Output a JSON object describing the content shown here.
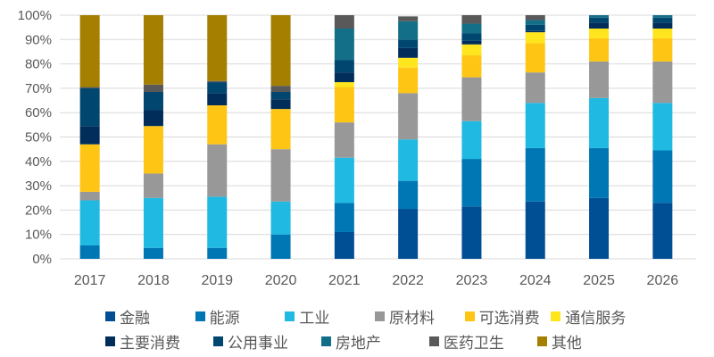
{
  "chart_data": {
    "type": "bar",
    "stacked": true,
    "title": "",
    "xlabel": "",
    "ylabel": "",
    "ylim": [
      0,
      100
    ],
    "yticks": [
      "0%",
      "10%",
      "20%",
      "30%",
      "40%",
      "50%",
      "60%",
      "70%",
      "80%",
      "90%",
      "100%"
    ],
    "grid": true,
    "legend_position": "bottom",
    "categories": [
      "2017",
      "2018",
      "2019",
      "2020",
      "2021",
      "2022",
      "2023",
      "2024",
      "2025",
      "2026"
    ],
    "series": [
      {
        "name": "金融",
        "color": "#004f94",
        "values": [
          0,
          0,
          0,
          0,
          11,
          20.5,
          21.5,
          23.5,
          25,
          23
        ]
      },
      {
        "name": "能源",
        "color": "#0077b5",
        "values": [
          5.5,
          4.5,
          4.5,
          10,
          12,
          11.5,
          19.5,
          22,
          20.5,
          21.5
        ]
      },
      {
        "name": "工业",
        "color": "#1fb9e1",
        "values": [
          18.5,
          20.5,
          21,
          13.5,
          18.5,
          17,
          15.5,
          18.5,
          20.5,
          19.5
        ]
      },
      {
        "name": "原材料",
        "color": "#989898",
        "values": [
          3.5,
          10,
          21.5,
          21.5,
          14.5,
          19,
          18,
          12.5,
          15,
          17
        ]
      },
      {
        "name": "可选消费",
        "color": "#fec514",
        "values": [
          19.5,
          19.5,
          16,
          16.5,
          14.5,
          10.5,
          9,
          12,
          9.5,
          9.5
        ]
      },
      {
        "name": "通信服务",
        "color": "#ffe51d",
        "values": [
          0,
          0,
          0,
          0,
          2,
          4,
          4.5,
          4.5,
          4,
          4
        ]
      },
      {
        "name": "主要消费",
        "color": "#002d5a",
        "values": [
          7.5,
          6.5,
          5,
          4,
          4,
          4,
          1.5,
          0.5,
          2.5,
          2.5
        ]
      },
      {
        "name": "公用事业",
        "color": "#00466e",
        "values": [
          15.5,
          7.5,
          4.5,
          3,
          5,
          3.5,
          3,
          2.5,
          2,
          2
        ]
      },
      {
        "name": "房地产",
        "color": "#136f88",
        "values": [
          0,
          0,
          0,
          0,
          13,
          7.5,
          4,
          2,
          1,
          1
        ]
      },
      {
        "name": "医药卫生",
        "color": "#595959",
        "values": [
          0.5,
          3,
          0.5,
          2.5,
          5.5,
          2,
          3.5,
          2,
          0,
          0
        ]
      },
      {
        "name": "其他",
        "color": "#a57f00",
        "values": [
          29.5,
          28.5,
          27,
          29,
          0,
          0,
          0,
          0,
          0,
          0
        ]
      }
    ]
  },
  "legend": {
    "rows": [
      [
        0,
        1,
        2,
        3,
        4,
        5
      ],
      [
        6,
        7,
        8,
        9,
        10
      ]
    ]
  }
}
